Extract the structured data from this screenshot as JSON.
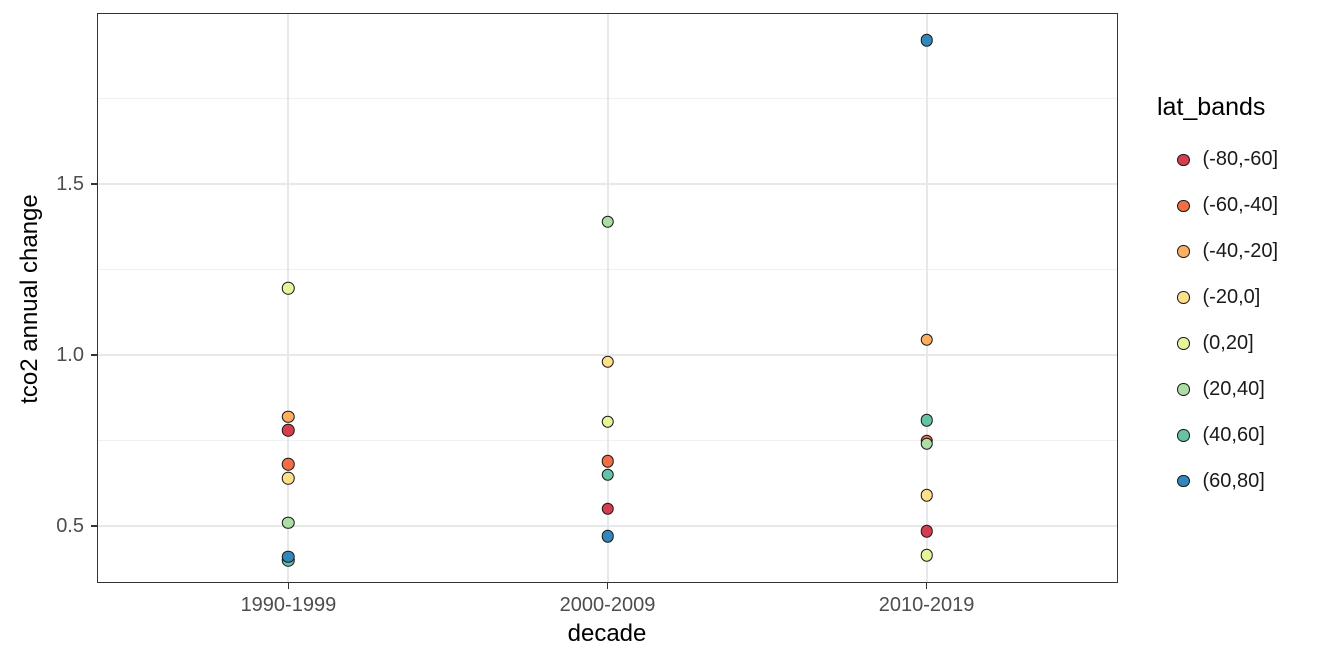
{
  "chart_data": {
    "type": "scatter",
    "xlabel": "decade",
    "ylabel": "tco2 annual change",
    "categories": [
      "1990-1999",
      "2000-2009",
      "2010-2019"
    ],
    "y_axis": {
      "ylim": [
        0.3333,
        2.0
      ],
      "ticks": [
        0.5,
        1.0,
        1.5
      ],
      "tick_labels": [
        "0.5",
        "1.0",
        "1.5"
      ],
      "minor_gridlines": [
        0.75,
        1.25,
        1.75
      ]
    },
    "grid": "on",
    "legend_position": "right",
    "legend": {
      "title": "lat_bands"
    },
    "series": [
      {
        "name": "(-80,-60]",
        "color": "#d53e4f",
        "values": [
          0.78,
          0.55,
          0.485
        ]
      },
      {
        "name": "(-60,-40]",
        "color": "#f46d43",
        "values": [
          0.68,
          0.69,
          0.75
        ]
      },
      {
        "name": "(-40,-20]",
        "color": "#fdae61",
        "values": [
          0.82,
          null,
          1.045
        ]
      },
      {
        "name": "(-20,0]",
        "color": "#fee08b",
        "values": [
          0.64,
          0.98,
          0.59
        ]
      },
      {
        "name": "(0,20]",
        "color": "#e6f598",
        "values": [
          1.195,
          0.805,
          0.415
        ]
      },
      {
        "name": "(20,40]",
        "color": "#abdda4",
        "values": [
          0.51,
          1.39,
          0.74
        ]
      },
      {
        "name": "(40,60]",
        "color": "#66c2a5",
        "values": [
          0.4,
          0.65,
          0.81
        ]
      },
      {
        "name": "(60,80]",
        "color": "#3288bd",
        "values": [
          0.41,
          0.47,
          1.92
        ]
      }
    ],
    "point_style": {
      "outline": "#1a1a1a",
      "fill_from_series": true
    },
    "colors": {
      "panel_border": "#333333",
      "grid_major": "#e8e8e8",
      "grid_minor": "#f0f0f0",
      "tick_label": "#4d4d4d",
      "axis_title": "#000000"
    }
  }
}
